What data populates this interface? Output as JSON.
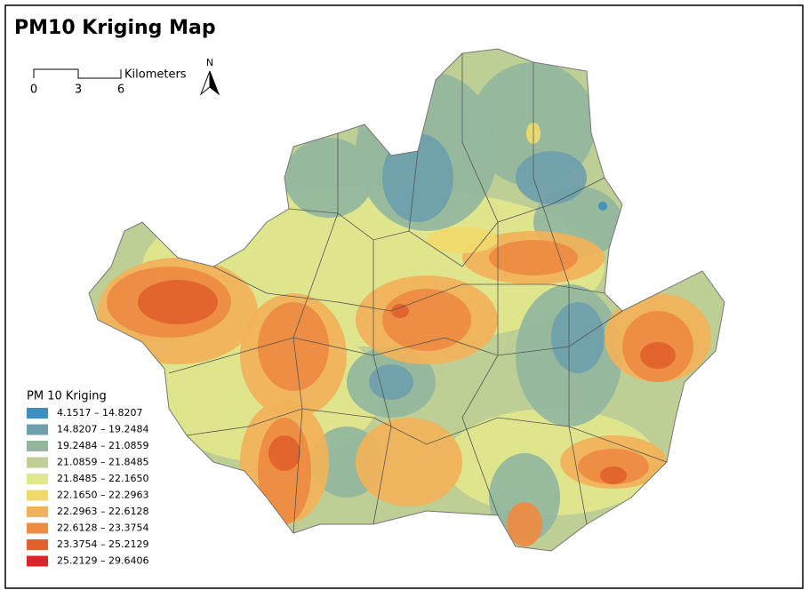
{
  "title": "PM10 Kriging Map",
  "scale_bar": {
    "ticks": [
      "0",
      "3",
      "6"
    ],
    "unit": "Kilometers"
  },
  "north_arrow": "N",
  "legend": {
    "title": "PM 10 Kriging",
    "items": [
      {
        "label": "4.1517 – 14.8207",
        "color": "#3b8fc1"
      },
      {
        "label": "14.8207 – 19.2484",
        "color": "#6e9fac"
      },
      {
        "label": "19.2484 – 21.0859",
        "color": "#93b79e"
      },
      {
        "label": "21.0859 – 21.8485",
        "color": "#bdcf95"
      },
      {
        "label": "21.8485 – 22.1650",
        "color": "#e1e78c"
      },
      {
        "label": "22.1650 – 22.2963",
        "color": "#f1da6c"
      },
      {
        "label": "22.2963 – 22.6128",
        "color": "#f2b259"
      },
      {
        "label": "22.6128 – 23.3754",
        "color": "#ee8b42"
      },
      {
        "label": "23.3754 – 25.2129",
        "color": "#e2622d"
      },
      {
        "label": "25.2129 – 29.6406",
        "color": "#d8262a"
      }
    ]
  }
}
